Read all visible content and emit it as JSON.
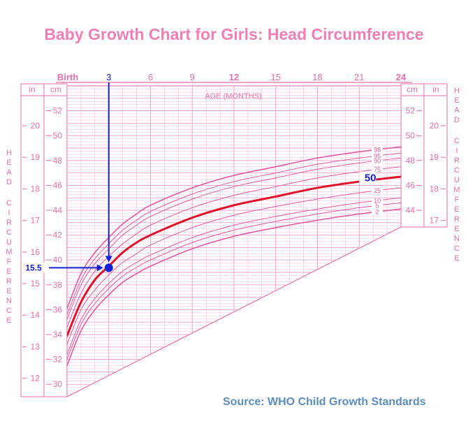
{
  "chart_data": {
    "type": "line",
    "title": "Baby Growth Chart for Girls: Head Circumference",
    "source": "Source: WHO Child Growth Standards",
    "x_axis": {
      "label": "AGE (MONTHS)",
      "range": [
        0,
        24
      ],
      "ticks": [
        {
          "value": 0,
          "label": "Birth"
        },
        {
          "value": 3,
          "label": "3"
        },
        {
          "value": 6,
          "label": "6"
        },
        {
          "value": 9,
          "label": "9"
        },
        {
          "value": 12,
          "label": "12"
        },
        {
          "value": 15,
          "label": "15"
        },
        {
          "value": 18,
          "label": "18"
        },
        {
          "value": 21,
          "label": "21"
        },
        {
          "value": 24,
          "label": "24"
        }
      ]
    },
    "y_axis": {
      "label": "HEAD CIRCUMFERENCE",
      "cm_range": [
        29,
        54
      ],
      "cm_unit": "cm",
      "in_unit": "in",
      "cm_ticks": [
        30,
        32,
        34,
        36,
        38,
        40,
        42,
        44,
        46,
        48,
        50,
        52
      ],
      "in_ticks": [
        12,
        13,
        14,
        15,
        16,
        17,
        18,
        19,
        20
      ],
      "right_cm_ticks": [
        44,
        46,
        48,
        50,
        52
      ],
      "right_in_ticks": [
        17,
        18,
        19,
        20
      ]
    },
    "x": [
      0,
      1,
      2,
      3,
      4,
      5,
      6,
      9,
      12,
      15,
      18,
      21,
      24
    ],
    "series": [
      {
        "name": "2",
        "values": [
          31.5,
          34.3,
          36.0,
          37.2,
          38.2,
          38.9,
          39.5,
          40.9,
          41.9,
          42.6,
          43.2,
          43.7,
          44.1
        ]
      },
      {
        "name": "5",
        "values": [
          32.0,
          34.8,
          36.5,
          37.7,
          38.7,
          39.4,
          40.0,
          41.4,
          42.4,
          43.1,
          43.7,
          44.2,
          44.6
        ]
      },
      {
        "name": "10",
        "values": [
          32.4,
          35.2,
          36.9,
          38.1,
          39.1,
          39.8,
          40.4,
          41.8,
          42.8,
          43.5,
          44.1,
          44.6,
          45.0
        ]
      },
      {
        "name": "25",
        "values": [
          33.2,
          36.0,
          37.6,
          38.8,
          39.8,
          40.5,
          41.2,
          42.6,
          43.6,
          44.3,
          44.9,
          45.4,
          45.8
        ]
      },
      {
        "name": "50",
        "values": [
          33.9,
          36.6,
          38.4,
          39.5,
          40.6,
          41.4,
          42.0,
          43.4,
          44.4,
          45.1,
          45.8,
          46.3,
          46.7
        ]
      },
      {
        "name": "75",
        "values": [
          34.6,
          37.3,
          39.1,
          40.3,
          41.3,
          42.1,
          42.8,
          44.2,
          45.2,
          45.9,
          46.6,
          47.1,
          47.5
        ]
      },
      {
        "name": "90",
        "values": [
          35.2,
          38.0,
          39.7,
          40.9,
          42.0,
          42.8,
          43.5,
          44.9,
          45.9,
          46.6,
          47.3,
          47.8,
          48.2
        ]
      },
      {
        "name": "95",
        "values": [
          35.6,
          38.4,
          40.1,
          41.3,
          42.4,
          43.2,
          43.9,
          45.3,
          46.3,
          47.0,
          47.7,
          48.2,
          48.6
        ]
      },
      {
        "name": "98",
        "values": [
          36.1,
          38.9,
          40.6,
          41.8,
          42.9,
          43.7,
          44.4,
          45.8,
          46.8,
          47.5,
          48.2,
          48.7,
          49.1
        ]
      }
    ],
    "highlight_series": "50",
    "highlight_label": "50",
    "annotation": {
      "x": 3,
      "y_in": 15.5,
      "x_label": "3",
      "y_label": "15.5"
    },
    "grid": true,
    "colors": {
      "grid": "#f2a3cc",
      "frame": "#e46fab",
      "curves": "#e05a9f",
      "highlight": "#e0122a",
      "annotation": "#1420d6",
      "text": "#e46fab"
    }
  }
}
